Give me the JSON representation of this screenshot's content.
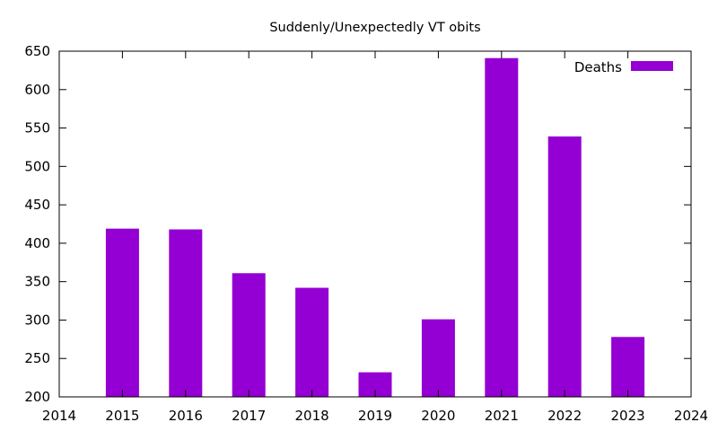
{
  "chart_data": {
    "type": "bar",
    "title": "Suddenly/Unexpectedly VT obits",
    "xlabel": "",
    "ylabel": "",
    "x": [
      2015,
      2016,
      2017,
      2018,
      2019,
      2020,
      2021,
      2022,
      2023
    ],
    "series": [
      {
        "name": "Deaths",
        "color": "#9400d3",
        "values": [
          419,
          418,
          361,
          342,
          232,
          301,
          641,
          539,
          278
        ]
      }
    ],
    "xlim": [
      2014,
      2024
    ],
    "ylim": [
      200,
      650
    ],
    "xticks": [
      "2014",
      "2015",
      "2016",
      "2017",
      "2018",
      "2019",
      "2020",
      "2021",
      "2022",
      "2023",
      "2024"
    ],
    "yticks": [
      "200",
      "250",
      "300",
      "350",
      "400",
      "450",
      "500",
      "550",
      "600",
      "650"
    ],
    "grid": false,
    "legend_position": "top-right"
  }
}
